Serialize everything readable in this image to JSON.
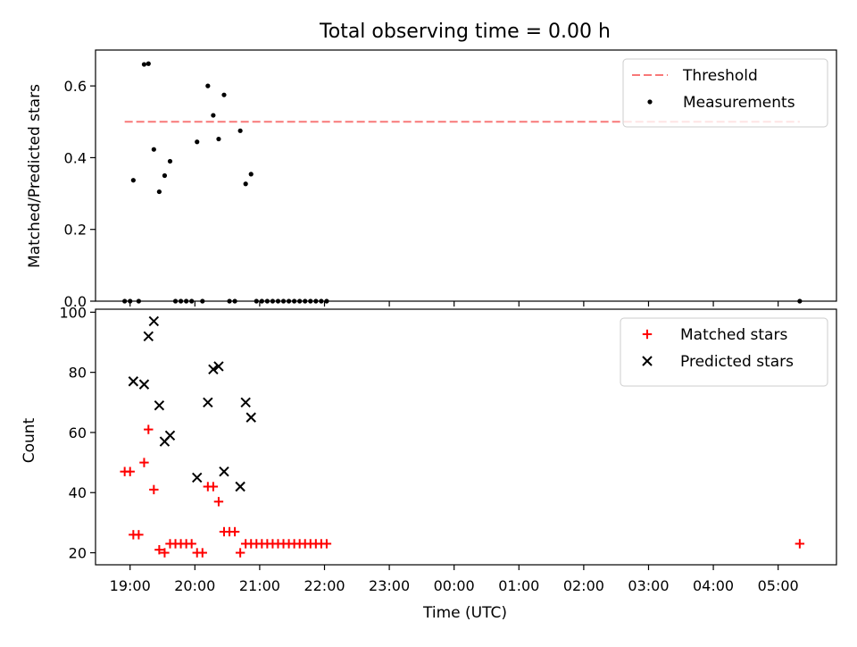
{
  "chart_data": {
    "title": "Total observing time = 0.00 h",
    "xlabel": "Time (UTC)",
    "x_ticks": [
      "19:00",
      "20:00",
      "21:00",
      "22:00",
      "23:00",
      "00:00",
      "01:00",
      "02:00",
      "03:00",
      "04:00",
      "05:00"
    ],
    "x_range": [
      "18:28",
      "05:54"
    ],
    "panels": [
      {
        "type": "scatter",
        "ylabel": "Matched/Predicted stars",
        "ylim": [
          0,
          0.7
        ],
        "yticks": [
          "0.0",
          "0.2",
          "0.4",
          "0.6"
        ],
        "legend_position": "top-right",
        "threshold": {
          "name": "Threshold",
          "value": 0.5,
          "x_start": "18:55",
          "x_end": "05:20",
          "color": "#f87878"
        },
        "series": [
          {
            "name": "Measurements",
            "color": "#000000",
            "points": [
              [
                "18:55",
                0
              ],
              [
                "19:00",
                0
              ],
              [
                "19:03",
                0.337
              ],
              [
                "19:08",
                0
              ],
              [
                "19:13",
                0.66
              ],
              [
                "19:17",
                0.662
              ],
              [
                "19:22",
                0.423
              ],
              [
                "19:27",
                0.305
              ],
              [
                "19:32",
                0.35
              ],
              [
                "19:37",
                0.39
              ],
              [
                "19:42",
                0
              ],
              [
                "19:47",
                0
              ],
              [
                "19:52",
                0
              ],
              [
                "19:57",
                0
              ],
              [
                "20:02",
                0.444
              ],
              [
                "20:07",
                0
              ],
              [
                "20:12",
                0.6
              ],
              [
                "20:17",
                0.518
              ],
              [
                "20:22",
                0.452
              ],
              [
                "20:27",
                0.575
              ],
              [
                "20:32",
                0
              ],
              [
                "20:37",
                0
              ],
              [
                "20:42",
                0.475
              ],
              [
                "20:47",
                0.327
              ],
              [
                "20:52",
                0.354
              ],
              [
                "20:57",
                0
              ],
              [
                "21:02",
                0
              ],
              [
                "21:07",
                0
              ],
              [
                "21:12",
                0
              ],
              [
                "21:17",
                0
              ],
              [
                "21:22",
                0
              ],
              [
                "21:27",
                0
              ],
              [
                "21:32",
                0
              ],
              [
                "21:37",
                0
              ],
              [
                "21:42",
                0
              ],
              [
                "21:47",
                0
              ],
              [
                "21:52",
                0
              ],
              [
                "21:57",
                0
              ],
              [
                "22:02",
                0
              ],
              [
                "05:20",
                0
              ]
            ]
          }
        ]
      },
      {
        "type": "scatter",
        "ylabel": "Count",
        "ylim": [
          16,
          101
        ],
        "yticks": [
          "20",
          "40",
          "60",
          "80",
          "100"
        ],
        "legend_position": "top-right",
        "series": [
          {
            "name": "Matched stars",
            "marker": "plus",
            "color": "#ff0000",
            "points": [
              [
                "18:55",
                47
              ],
              [
                "19:00",
                47
              ],
              [
                "19:03",
                26
              ],
              [
                "19:08",
                26
              ],
              [
                "19:13",
                50
              ],
              [
                "19:17",
                61
              ],
              [
                "19:22",
                41
              ],
              [
                "19:27",
                21
              ],
              [
                "19:32",
                20
              ],
              [
                "19:37",
                23
              ],
              [
                "19:42",
                23
              ],
              [
                "19:47",
                23
              ],
              [
                "19:52",
                23
              ],
              [
                "19:57",
                23
              ],
              [
                "20:02",
                20
              ],
              [
                "20:07",
                20
              ],
              [
                "20:12",
                42
              ],
              [
                "20:17",
                42
              ],
              [
                "20:22",
                37
              ],
              [
                "20:27",
                27
              ],
              [
                "20:32",
                27
              ],
              [
                "20:37",
                27
              ],
              [
                "20:42",
                20
              ],
              [
                "20:47",
                23
              ],
              [
                "20:52",
                23
              ],
              [
                "20:57",
                23
              ],
              [
                "21:02",
                23
              ],
              [
                "21:07",
                23
              ],
              [
                "21:12",
                23
              ],
              [
                "21:17",
                23
              ],
              [
                "21:22",
                23
              ],
              [
                "21:27",
                23
              ],
              [
                "21:32",
                23
              ],
              [
                "21:37",
                23
              ],
              [
                "21:42",
                23
              ],
              [
                "21:47",
                23
              ],
              [
                "21:52",
                23
              ],
              [
                "21:57",
                23
              ],
              [
                "22:02",
                23
              ],
              [
                "05:20",
                23
              ]
            ]
          },
          {
            "name": "Predicted stars",
            "marker": "x",
            "color": "#000000",
            "points": [
              [
                "19:03",
                77
              ],
              [
                "19:13",
                76
              ],
              [
                "19:17",
                92
              ],
              [
                "19:22",
                97
              ],
              [
                "19:27",
                69
              ],
              [
                "19:32",
                57
              ],
              [
                "19:37",
                59
              ],
              [
                "20:02",
                45
              ],
              [
                "20:12",
                70
              ],
              [
                "20:17",
                81
              ],
              [
                "20:22",
                82
              ],
              [
                "20:27",
                47
              ],
              [
                "20:42",
                42
              ],
              [
                "20:47",
                70
              ],
              [
                "20:52",
                65
              ]
            ]
          }
        ]
      }
    ]
  }
}
